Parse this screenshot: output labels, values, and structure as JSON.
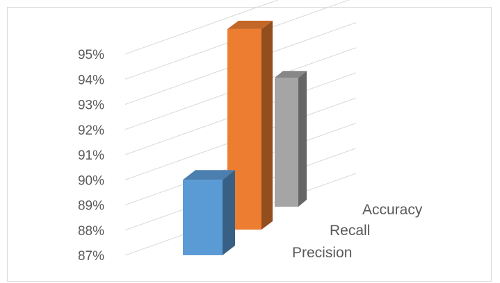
{
  "chart_data": {
    "type": "bar",
    "subtype": "3d-column",
    "title": "",
    "xlabel": "",
    "ylabel": "",
    "categories": [
      "Precision",
      "Recall",
      "Accuracy"
    ],
    "values": [
      90,
      95.5,
      92.8
    ],
    "value_unit": "%",
    "ylim": [
      87,
      95
    ],
    "yticks": [
      "87%",
      "88%",
      "89%",
      "90%",
      "91%",
      "92%",
      "93%",
      "94%",
      "95%"
    ],
    "grid": true,
    "legend": "none",
    "colors": [
      "#5b9bd5",
      "#ed7d31",
      "#a5a5a5"
    ]
  }
}
